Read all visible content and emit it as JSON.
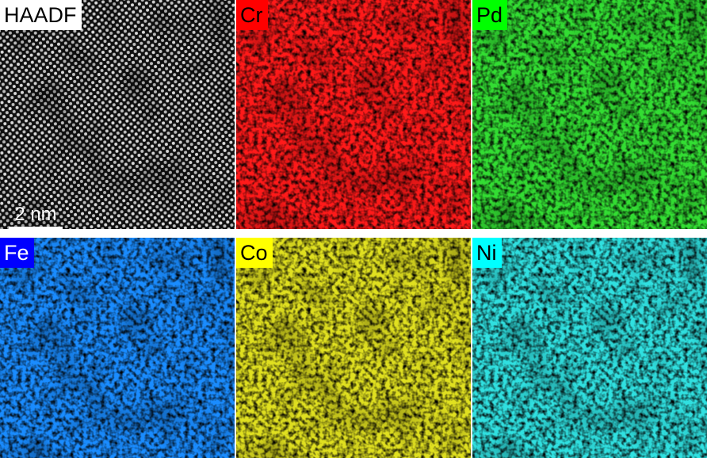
{
  "panels": [
    {
      "label": "HAADF",
      "label_bg": "#ffffff",
      "label_fg": "#000000",
      "map_color": "#ffffff"
    },
    {
      "label": "Cr",
      "label_bg": "#ff0000",
      "label_fg": "#000000",
      "map_color": "#ff1a1a"
    },
    {
      "label": "Pd",
      "label_bg": "#00ff00",
      "label_fg": "#000000",
      "map_color": "#33dd33"
    },
    {
      "label": "Fe",
      "label_bg": "#0000ff",
      "label_fg": "#ffffff",
      "map_color": "#1a8cff"
    },
    {
      "label": "Co",
      "label_bg": "#ffff00",
      "label_fg": "#000000",
      "map_color": "#e0e020"
    },
    {
      "label": "Ni",
      "label_bg": "#00ffff",
      "label_fg": "#000000",
      "map_color": "#30e0e0"
    }
  ],
  "scale_bar": {
    "label": "2 nm"
  }
}
